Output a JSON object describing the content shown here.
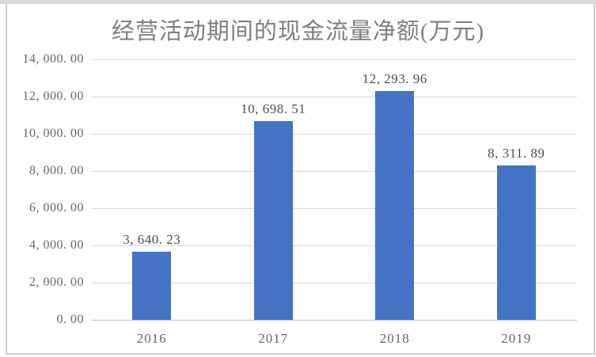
{
  "title": "经营活动期间的现金流量净额(万元)",
  "colors": {
    "bar": "#4472C4",
    "gridline": "#d9d9d9",
    "axis_line": "#bfbfbf",
    "title_text": "#7f7f7f",
    "axis_text": "#666666",
    "data_label_text": "#4d4d4d",
    "frame_border": "#cccccc",
    "top_strip": "#dadada"
  },
  "chart_data": {
    "type": "bar",
    "title": "经营活动期间的现金流量净额(万元)",
    "categories": [
      "2016",
      "2017",
      "2018",
      "2019"
    ],
    "values": [
      3640.23,
      10698.51,
      12293.96,
      8311.89
    ],
    "data_labels": [
      "3, 640. 23",
      "10, 698. 51",
      "12, 293. 96",
      "8, 311. 89"
    ],
    "xlabel": "",
    "ylabel": "",
    "y_axis": {
      "min": 0,
      "max": 14000,
      "step": 2000,
      "tick_labels": [
        "0. 00",
        "2, 000. 00",
        "4, 000. 00",
        "6, 000. 00",
        "8, 000. 00",
        "10, 000. 00",
        "12, 000. 00",
        "14, 000. 00"
      ]
    },
    "grid": true,
    "legend": false,
    "bar_color": "#4472C4"
  }
}
